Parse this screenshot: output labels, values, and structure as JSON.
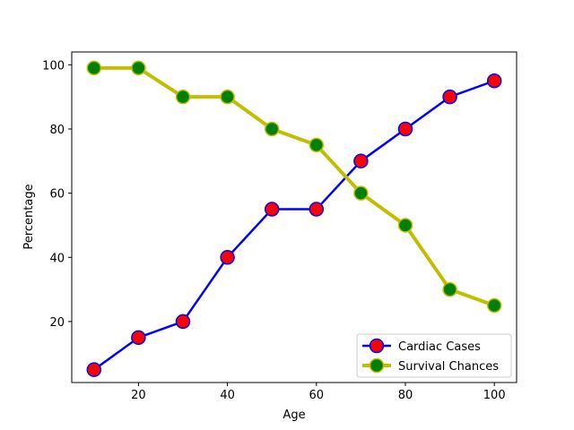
{
  "chart_data": {
    "type": "line",
    "title": "",
    "xlabel": "Age",
    "ylabel": "Percentage",
    "x": [
      10,
      20,
      30,
      40,
      50,
      60,
      70,
      80,
      90,
      100
    ],
    "xlim": [
      5,
      105
    ],
    "ylim": [
      1,
      104
    ],
    "xticks": [
      20,
      40,
      60,
      80,
      100
    ],
    "yticks": [
      20,
      40,
      60,
      80,
      100
    ],
    "grid": false,
    "legend_position": "lower-right",
    "series": [
      {
        "name": "Cardiac Cases",
        "values": [
          5,
          15,
          20,
          40,
          55,
          55,
          70,
          80,
          90,
          95
        ],
        "line_color": "#0000ff",
        "marker_fill": "#ff0000",
        "marker_edge": "#0000ff"
      },
      {
        "name": "Survival Chances",
        "values": [
          99,
          99,
          90,
          90,
          80,
          75,
          60,
          50,
          30,
          25
        ],
        "line_color": "#bfbf00",
        "marker_fill": "#008000",
        "marker_edge": "#bfbf00"
      }
    ]
  }
}
